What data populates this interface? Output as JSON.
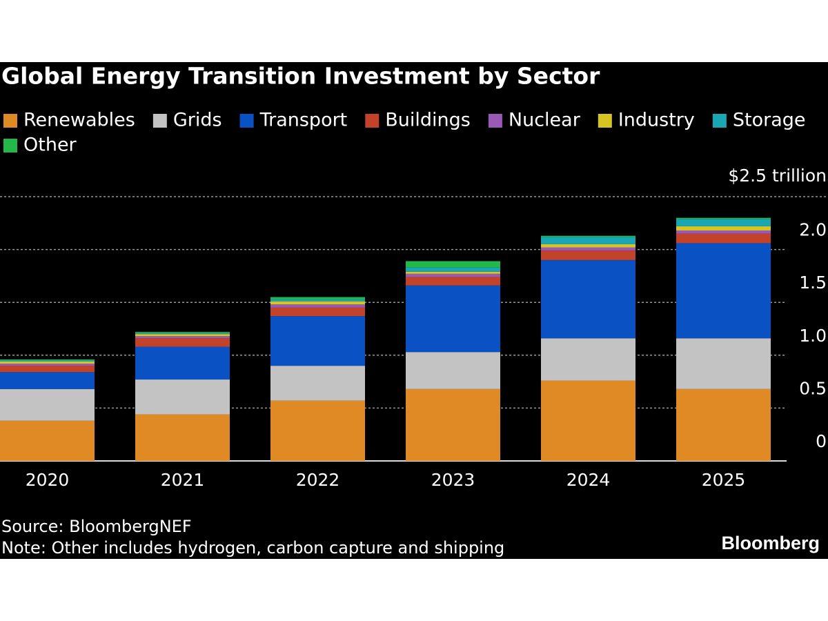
{
  "chart_data": {
    "type": "stacked_bar",
    "title": "Global Energy Transition Investment by Sector",
    "categories": [
      "2020",
      "2021",
      "2022",
      "2023",
      "2024",
      "2025"
    ],
    "series": [
      {
        "name": "Renewables",
        "color": "#e08a26",
        "values": [
          0.38,
          0.44,
          0.57,
          0.68,
          0.76,
          0.68
        ]
      },
      {
        "name": "Grids",
        "color": "#c3c3c3",
        "values": [
          0.3,
          0.33,
          0.33,
          0.35,
          0.4,
          0.48
        ]
      },
      {
        "name": "Transport",
        "color": "#0a52c4",
        "values": [
          0.16,
          0.31,
          0.47,
          0.63,
          0.74,
          0.9
        ]
      },
      {
        "name": "Buildings",
        "color": "#c2432a",
        "values": [
          0.06,
          0.08,
          0.08,
          0.08,
          0.09,
          0.09
        ]
      },
      {
        "name": "Nuclear",
        "color": "#9b59b6",
        "values": [
          0.02,
          0.02,
          0.03,
          0.03,
          0.03,
          0.03
        ]
      },
      {
        "name": "Industry",
        "color": "#d6c422",
        "values": [
          0.02,
          0.02,
          0.03,
          0.02,
          0.03,
          0.04
        ]
      },
      {
        "name": "Storage",
        "color": "#1aa6b2",
        "values": [
          0.01,
          0.01,
          0.02,
          0.04,
          0.07,
          0.07
        ]
      },
      {
        "name": "Other",
        "color": "#22b84a",
        "values": [
          0.01,
          0.01,
          0.02,
          0.06,
          0.01,
          0.01
        ]
      }
    ],
    "ylim": [
      0,
      2.5
    ],
    "yticks": [
      0,
      0.5,
      {
        "value": 1,
        "label": "1.0"
      },
      1.5,
      {
        "value": 2,
        "label": "2.0"
      },
      {
        "value": 2.5,
        "label": "$2.5 trillion"
      }
    ],
    "grid": true,
    "source": "Source: BloombergNEF",
    "note": "Note: Other includes hydrogen, carbon capture and shipping",
    "brand": "Bloomberg"
  }
}
